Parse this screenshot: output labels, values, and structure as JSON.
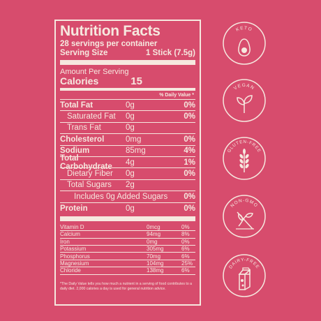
{
  "label": {
    "title": "Nutrition Facts",
    "servings": "28 servings per container",
    "serving_size_label": "Serving Size",
    "serving_size_value": "1 Stick (7.5g)",
    "amount_per_serving": "Amount Per Serving",
    "calories_label": "Calories",
    "calories_value": "15",
    "dv_header": "% Daily Value *",
    "nutrients": [
      {
        "label": "Total Fat",
        "amount": "0g",
        "dv": "0%"
      },
      {
        "label": "Saturated Fat",
        "amount": "0g",
        "dv": "0%"
      },
      {
        "label": "Trans Fat",
        "amount": "0g",
        "dv": ""
      },
      {
        "label": "Cholesterol",
        "amount": "0mg",
        "dv": "0%"
      },
      {
        "label": "Sodium",
        "amount": "85mg",
        "dv": "4%"
      },
      {
        "label": "Total Carbohydrate",
        "amount": "4g",
        "dv": "1%"
      },
      {
        "label": "Dietary Fiber",
        "amount": "0g",
        "dv": "0%"
      },
      {
        "label": "Total Sugars",
        "amount": "2g",
        "dv": ""
      },
      {
        "label": "Includes 0g Added Sugars",
        "amount": "",
        "dv": "0%"
      },
      {
        "label": "Protein",
        "amount": "0g",
        "dv": "0%"
      }
    ],
    "vitamins": [
      {
        "label": "Vitamin D",
        "amount": "0mcg",
        "dv": "0%"
      },
      {
        "label": "Calcium",
        "amount": "94mg",
        "dv": "8%"
      },
      {
        "label": "Iron",
        "amount": "0mg",
        "dv": "0%"
      },
      {
        "label": "Potassium",
        "amount": "305mg",
        "dv": "6%"
      },
      {
        "label": "Phosphorus",
        "amount": "70mg",
        "dv": "6%"
      },
      {
        "label": "Magnesium",
        "amount": "104mg",
        "dv": "25%"
      },
      {
        "label": "Chloride",
        "amount": "138mg",
        "dv": "6%"
      }
    ],
    "footnote": "*The Daily Value tells you how much a nutrient in a serving of food contributes to a daily diet. 2,000 calories a day is used for general nutrition advice."
  },
  "badges": [
    {
      "text": "KETO",
      "icon": "avocado-icon"
    },
    {
      "text": "VEGAN",
      "icon": "leaf-sprout-icon"
    },
    {
      "text": "GLUTEN-FREE",
      "icon": "wheat-icon"
    },
    {
      "text": "NON-GMO",
      "icon": "crossed-plant-icon"
    },
    {
      "text": "DAIRY-FREE",
      "icon": "milk-carton-icon"
    }
  ],
  "colors": {
    "background": "#d74c6d",
    "foreground": "#f6e8df"
  }
}
